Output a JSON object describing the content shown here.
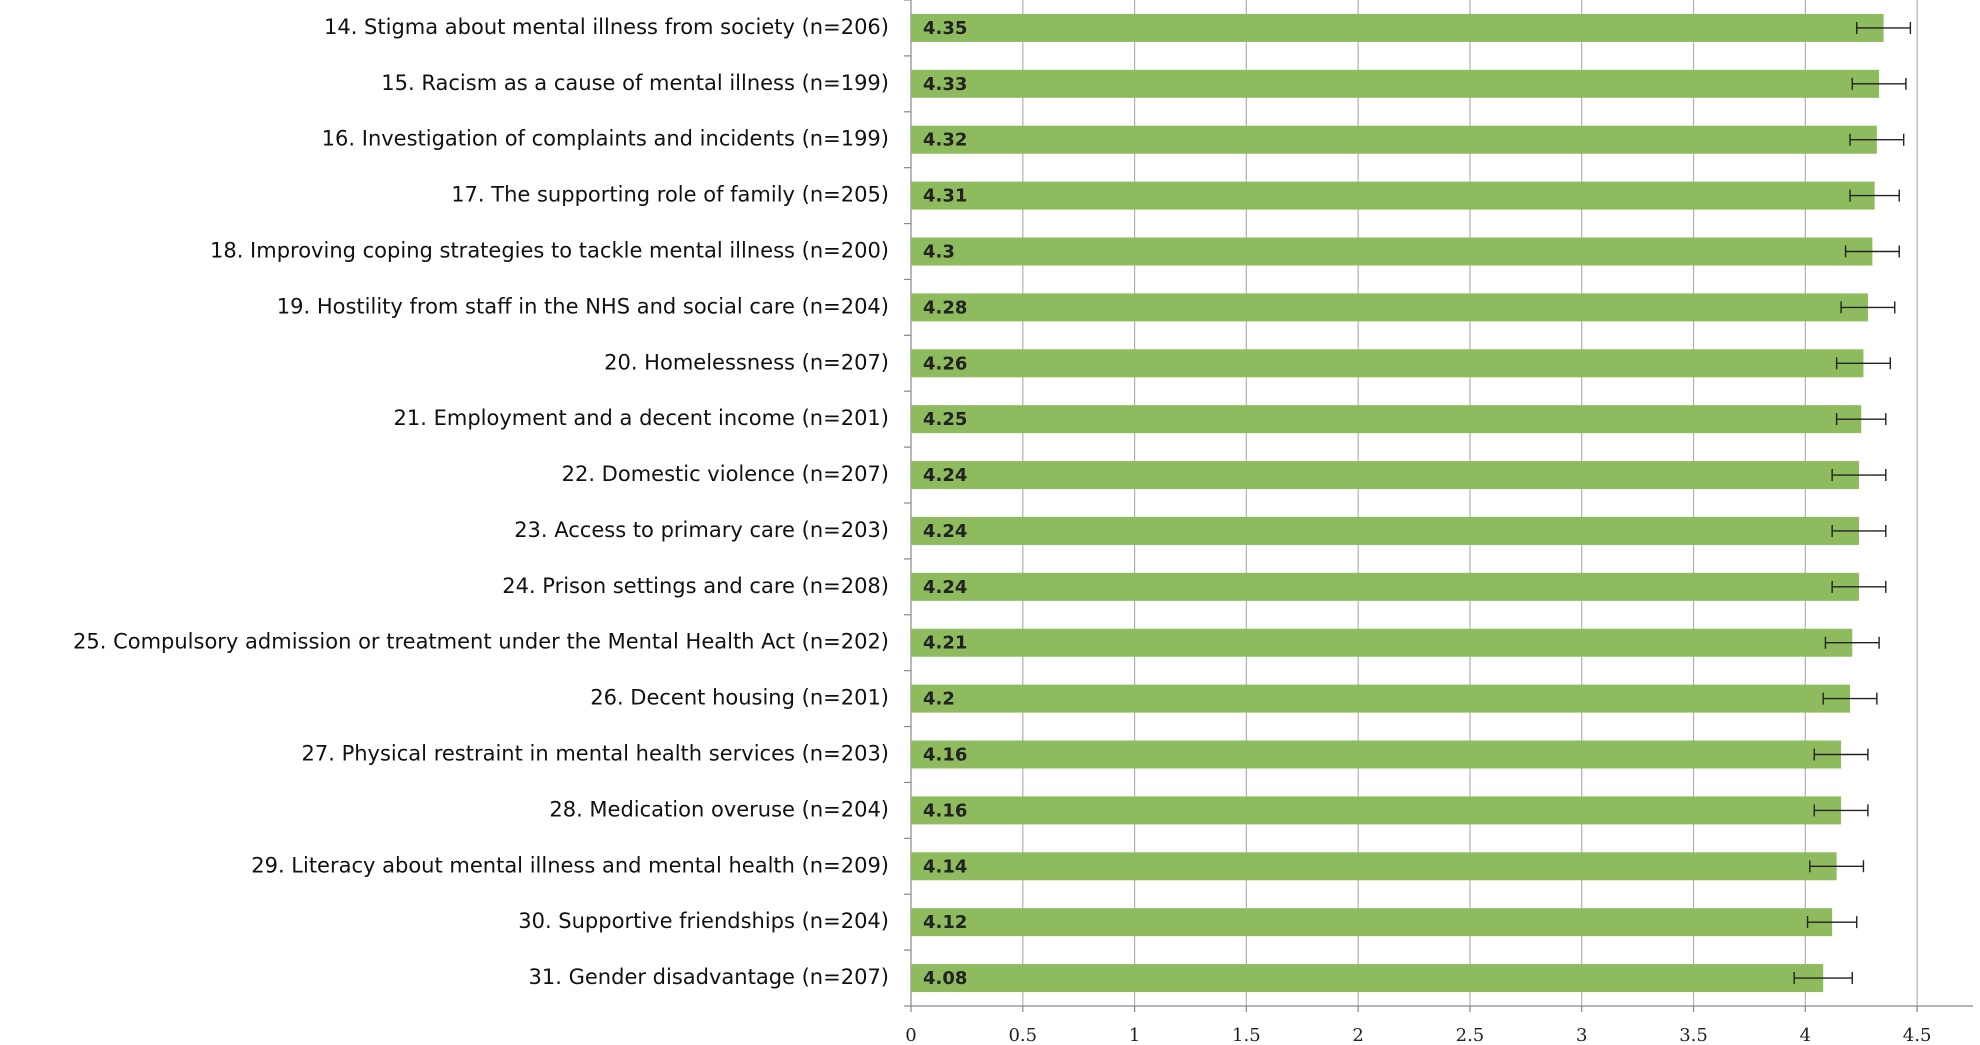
{
  "chart_data": {
    "type": "bar",
    "orientation": "horizontal",
    "categories": [
      "14. Stigma about mental illness from society (n=206)",
      "15. Racism as a cause of mental illness (n=199)",
      "16. Investigation of complaints and incidents (n=199)",
      "17. The supporting role of family (n=205)",
      "18. Improving coping strategies to tackle mental illness (n=200)",
      "19. Hostility from staff in the NHS and social care (n=204)",
      "20. Homelessness (n=207)",
      "21. Employment and a decent income (n=201)",
      "22. Domestic violence (n=207)",
      "23. Access to primary care (n=203)",
      "24. Prison settings and care (n=208)",
      "25. Compulsory admission or treatment under the Mental Health Act (n=202)",
      "26. Decent housing (n=201)",
      "27. Physical restraint in mental health services (n=203)",
      "28. Medication overuse (n=204)",
      "29. Literacy about mental illness and mental health (n=209)",
      "30. Supportive friendships (n=204)",
      "31. Gender disadvantage (n=207)"
    ],
    "values": [
      4.35,
      4.33,
      4.32,
      4.31,
      4.3,
      4.28,
      4.26,
      4.25,
      4.24,
      4.24,
      4.24,
      4.21,
      4.2,
      4.16,
      4.16,
      4.14,
      4.12,
      4.08
    ],
    "errors": [
      0.12,
      0.12,
      0.12,
      0.11,
      0.12,
      0.12,
      0.12,
      0.11,
      0.12,
      0.12,
      0.12,
      0.12,
      0.12,
      0.12,
      0.12,
      0.12,
      0.11,
      0.13
    ],
    "color": "#8fbb5f",
    "xlim": [
      0,
      4.75
    ],
    "xticks": [
      0,
      0.5,
      1,
      1.5,
      2,
      2.5,
      3,
      3.5,
      4,
      4.5
    ],
    "grid": true
  }
}
